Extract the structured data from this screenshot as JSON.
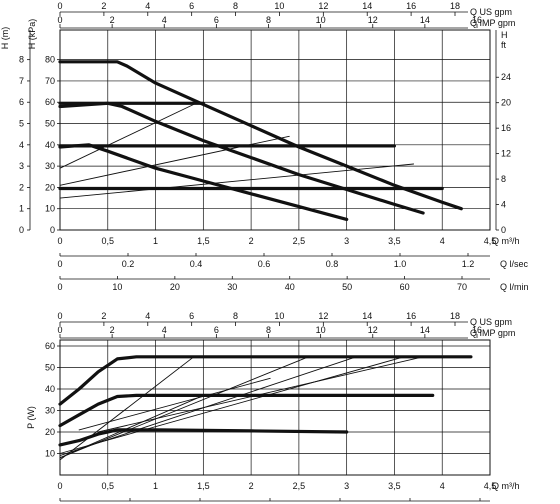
{
  "chart_data": [
    {
      "type": "line",
      "title": "",
      "xlabel": "Q m³/h",
      "ylabel": "H (kPa)",
      "xlim": [
        0,
        4.5
      ],
      "ylim": [
        0,
        85
      ],
      "x_ticks": [
        "0",
        "0,5",
        "1",
        "1,5",
        "2",
        "2,5",
        "3",
        "3,5",
        "4",
        "4,5"
      ],
      "y_ticks": [
        "0",
        "10",
        "20",
        "30",
        "40",
        "50",
        "60",
        "70",
        "80"
      ],
      "grid": true,
      "secondary_axes": {
        "h_m_label": "H (m)",
        "h_m_ticks": [
          "0",
          "1",
          "2",
          "3",
          "4",
          "5",
          "6",
          "7",
          "8"
        ],
        "h_ft_label": "H ft",
        "h_ft_ticks": [
          "0",
          "4",
          "8",
          "12",
          "16",
          "20",
          "24"
        ],
        "us_gpm_label": "Q US gpm",
        "us_gpm_ticks": [
          "0",
          "2",
          "4",
          "6",
          "8",
          "10",
          "12",
          "14",
          "16",
          "18"
        ],
        "imp_gpm_label": "Q IMP gpm",
        "imp_gpm_ticks": [
          "0",
          "2",
          "4",
          "6",
          "8",
          "10",
          "12",
          "14",
          "16"
        ],
        "l_sec_label": "Q l/sec",
        "l_sec_ticks": [
          "0",
          "0.2",
          "0.4",
          "0.6",
          "0.8",
          "1.0",
          "1.2"
        ],
        "l_min_label": "Q l/min",
        "l_min_ticks": [
          "0",
          "10",
          "20",
          "30",
          "40",
          "50",
          "60",
          "70"
        ]
      },
      "series": [
        {
          "style": "bold",
          "points": [
            [
              0,
              79
            ],
            [
              0.6,
              79
            ],
            [
              0.7,
              77
            ],
            [
              1.0,
              69
            ],
            [
              1.5,
              59
            ],
            [
              2.0,
              49
            ],
            [
              2.5,
              39
            ],
            [
              3.0,
              30
            ],
            [
              3.5,
              21
            ],
            [
              4.0,
              13
            ],
            [
              4.2,
              10
            ]
          ]
        },
        {
          "style": "bold",
          "points": [
            [
              0,
              58
            ],
            [
              0.5,
              59.5
            ],
            [
              0.65,
              58
            ],
            [
              1.0,
              51
            ],
            [
              1.5,
              42
            ],
            [
              2.0,
              34
            ],
            [
              2.5,
              26
            ],
            [
              3.0,
              19
            ],
            [
              3.5,
              12
            ],
            [
              3.8,
              8
            ]
          ]
        },
        {
          "style": "bold",
          "points": [
            [
              0,
              39
            ],
            [
              0.3,
              40
            ],
            [
              0.5,
              37
            ],
            [
              1.0,
              29
            ],
            [
              1.5,
              23
            ],
            [
              2.0,
              17
            ],
            [
              2.5,
              11
            ],
            [
              3.0,
              5
            ]
          ]
        },
        {
          "style": "bold",
          "points": [
            [
              0,
              59.5
            ],
            [
              1.5,
              59.5
            ]
          ]
        },
        {
          "style": "bold",
          "points": [
            [
              0,
              39.5
            ],
            [
              3.5,
              39.5
            ]
          ]
        },
        {
          "style": "bold",
          "points": [
            [
              0,
              19.5
            ],
            [
              4.0,
              19.5
            ]
          ]
        },
        {
          "style": "thin",
          "points": [
            [
              0,
              29
            ],
            [
              1.4,
              59
            ]
          ]
        },
        {
          "style": "thin",
          "points": [
            [
              0,
              21
            ],
            [
              2.4,
              44
            ]
          ]
        },
        {
          "style": "thin",
          "points": [
            [
              0,
              15
            ],
            [
              3.7,
              31
            ]
          ]
        }
      ]
    },
    {
      "type": "line",
      "title": "",
      "xlabel": "Q m³/h",
      "ylabel": "P (W)",
      "xlim": [
        0,
        4.5
      ],
      "ylim": [
        0,
        60
      ],
      "x_ticks": [
        "0",
        "0,5",
        "1",
        "1,5",
        "2",
        "2,5",
        "3",
        "3,5",
        "4",
        "4,5"
      ],
      "y_ticks": [
        "10",
        "20",
        "30",
        "40",
        "50",
        "60"
      ],
      "grid": true,
      "secondary_axes": {
        "us_gpm_label": "Q US gpm",
        "us_gpm_ticks": [
          "0",
          "2",
          "4",
          "6",
          "8",
          "10",
          "12",
          "14",
          "16",
          "18"
        ],
        "imp_gpm_label": "Q IMP gpm",
        "imp_gpm_ticks": [
          "0",
          "2",
          "4",
          "6",
          "8",
          "10",
          "12",
          "14",
          "16"
        ],
        "l_sec_label": "Q l/sec",
        "l_sec_ticks": [
          "0",
          "0.2",
          "0.4",
          "0.6",
          "0.8",
          "1.0",
          "1.2"
        ]
      },
      "series": [
        {
          "style": "bold",
          "points": [
            [
              0,
              33
            ],
            [
              0.2,
              40
            ],
            [
              0.4,
              48
            ],
            [
              0.6,
              54
            ],
            [
              0.8,
              55
            ],
            [
              2.0,
              55
            ],
            [
              3.5,
              55
            ],
            [
              4.3,
              55
            ]
          ]
        },
        {
          "style": "bold",
          "points": [
            [
              0,
              23
            ],
            [
              0.2,
              28
            ],
            [
              0.4,
              33
            ],
            [
              0.6,
              36.5
            ],
            [
              0.8,
              37
            ],
            [
              2.0,
              37
            ],
            [
              3.0,
              37
            ],
            [
              3.9,
              37
            ]
          ]
        },
        {
          "style": "bold",
          "points": [
            [
              0,
              14
            ],
            [
              0.2,
              16
            ],
            [
              0.4,
              19
            ],
            [
              0.6,
              21
            ],
            [
              1.0,
              21
            ],
            [
              2.0,
              20.5
            ],
            [
              3.0,
              20
            ]
          ]
        },
        {
          "style": "thin",
          "points": [
            [
              0,
              7
            ],
            [
              1.4,
              55
            ]
          ]
        },
        {
          "style": "thin",
          "points": [
            [
              0,
              8
            ],
            [
              2.6,
              55
            ]
          ]
        },
        {
          "style": "thin",
          "points": [
            [
              0,
              9
            ],
            [
              3.1,
              55
            ]
          ]
        },
        {
          "style": "thin",
          "points": [
            [
              0,
              10
            ],
            [
              3.6,
              55
            ]
          ]
        },
        {
          "style": "thin",
          "points": [
            [
              0,
              8
            ],
            [
              1.5,
              37
            ]
          ]
        },
        {
          "style": "thin",
          "points": [
            [
              0.2,
              21
            ],
            [
              2.2,
              45
            ]
          ]
        },
        {
          "style": "thin",
          "points": [
            [
              0.4,
              20
            ],
            [
              3.8,
              55
            ]
          ]
        }
      ]
    }
  ]
}
